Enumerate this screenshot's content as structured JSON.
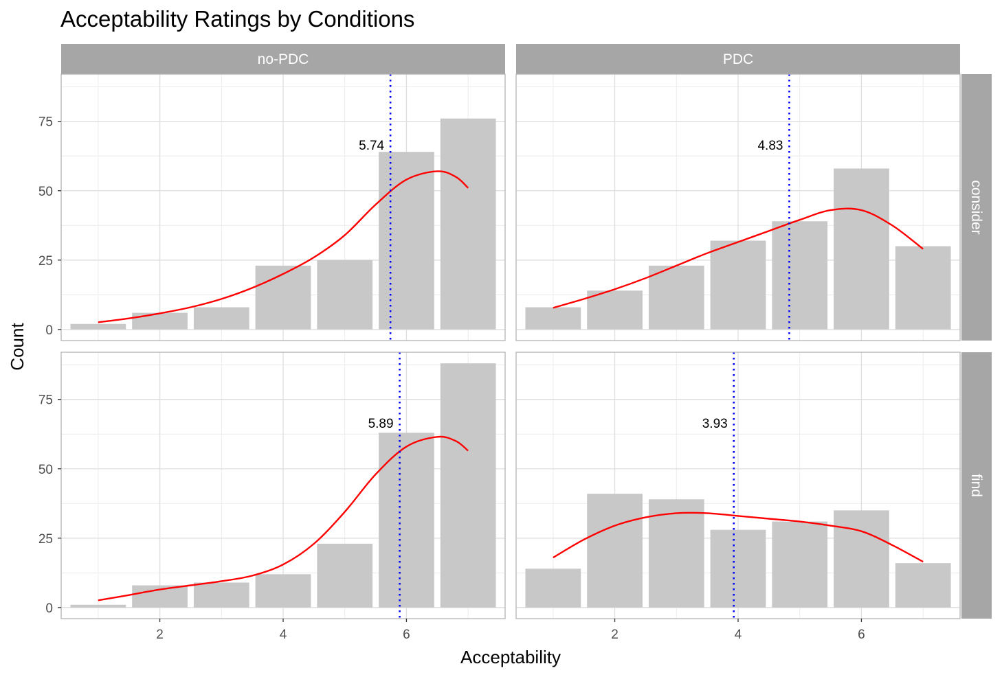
{
  "chart_data": {
    "type": "bar",
    "title": "Acceptability Ratings by Conditions",
    "xlabel": "Acceptability",
    "ylabel": "Count",
    "x_ticks": [
      2,
      4,
      6
    ],
    "y_ticks": [
      0,
      25,
      50,
      75
    ],
    "xlim": [
      0.4,
      7.6
    ],
    "ylim": [
      -4,
      92
    ],
    "grid": true,
    "categories": [
      1,
      2,
      3,
      4,
      5,
      6,
      7
    ],
    "col_facets": [
      "no-PDC",
      "PDC"
    ],
    "row_facets": [
      "consider",
      "find"
    ],
    "colors": {
      "bar": "#c8c8c8",
      "density": "#ff0000",
      "mean_line": "#0000ff",
      "strip": "#a6a6a6"
    },
    "panels": [
      {
        "col": "no-PDC",
        "row": "consider",
        "values": [
          2,
          6,
          8,
          23,
          25,
          64,
          76
        ],
        "mean": 5.74,
        "mean_label": "5.74",
        "density_curve": [
          [
            1,
            2.6
          ],
          [
            1.5,
            4
          ],
          [
            2,
            5.8
          ],
          [
            2.5,
            8
          ],
          [
            3,
            11
          ],
          [
            3.5,
            15
          ],
          [
            4,
            20
          ],
          [
            4.5,
            26
          ],
          [
            5,
            34
          ],
          [
            5.5,
            45
          ],
          [
            6,
            54
          ],
          [
            6.5,
            57
          ],
          [
            6.8,
            55
          ],
          [
            7,
            51
          ]
        ]
      },
      {
        "col": "PDC",
        "row": "consider",
        "values": [
          8,
          14,
          23,
          32,
          39,
          58,
          30
        ],
        "mean": 4.83,
        "mean_label": "4.83",
        "density_curve": [
          [
            1,
            7.8
          ],
          [
            1.5,
            11
          ],
          [
            2,
            14.5
          ],
          [
            2.5,
            18.5
          ],
          [
            3,
            23
          ],
          [
            3.5,
            27.5
          ],
          [
            4,
            31.5
          ],
          [
            4.5,
            35.5
          ],
          [
            5,
            39.5
          ],
          [
            5.5,
            43
          ],
          [
            6,
            43
          ],
          [
            6.5,
            37.5
          ],
          [
            7,
            29
          ]
        ]
      },
      {
        "col": "no-PDC",
        "row": "find",
        "values": [
          1,
          8,
          9,
          12,
          23,
          63,
          88
        ],
        "mean": 5.89,
        "mean_label": "5.89",
        "density_curve": [
          [
            1,
            2.6
          ],
          [
            1.5,
            4.5
          ],
          [
            2,
            6.5
          ],
          [
            2.5,
            8
          ],
          [
            3,
            9.5
          ],
          [
            3.5,
            11.5
          ],
          [
            4,
            15.5
          ],
          [
            4.5,
            23
          ],
          [
            5,
            34.5
          ],
          [
            5.5,
            48
          ],
          [
            6,
            58
          ],
          [
            6.5,
            61.5
          ],
          [
            6.8,
            60
          ],
          [
            7,
            56.5
          ]
        ]
      },
      {
        "col": "PDC",
        "row": "find",
        "values": [
          14,
          41,
          39,
          28,
          31,
          35,
          16
        ],
        "mean": 3.93,
        "mean_label": "3.93",
        "density_curve": [
          [
            1,
            18
          ],
          [
            1.5,
            24.5
          ],
          [
            2,
            29.5
          ],
          [
            2.5,
            32.5
          ],
          [
            3,
            34
          ],
          [
            3.5,
            34
          ],
          [
            4,
            33
          ],
          [
            4.5,
            32
          ],
          [
            5,
            31
          ],
          [
            5.5,
            29.5
          ],
          [
            6,
            27.5
          ],
          [
            6.5,
            22.5
          ],
          [
            7,
            16.5
          ]
        ]
      }
    ]
  }
}
